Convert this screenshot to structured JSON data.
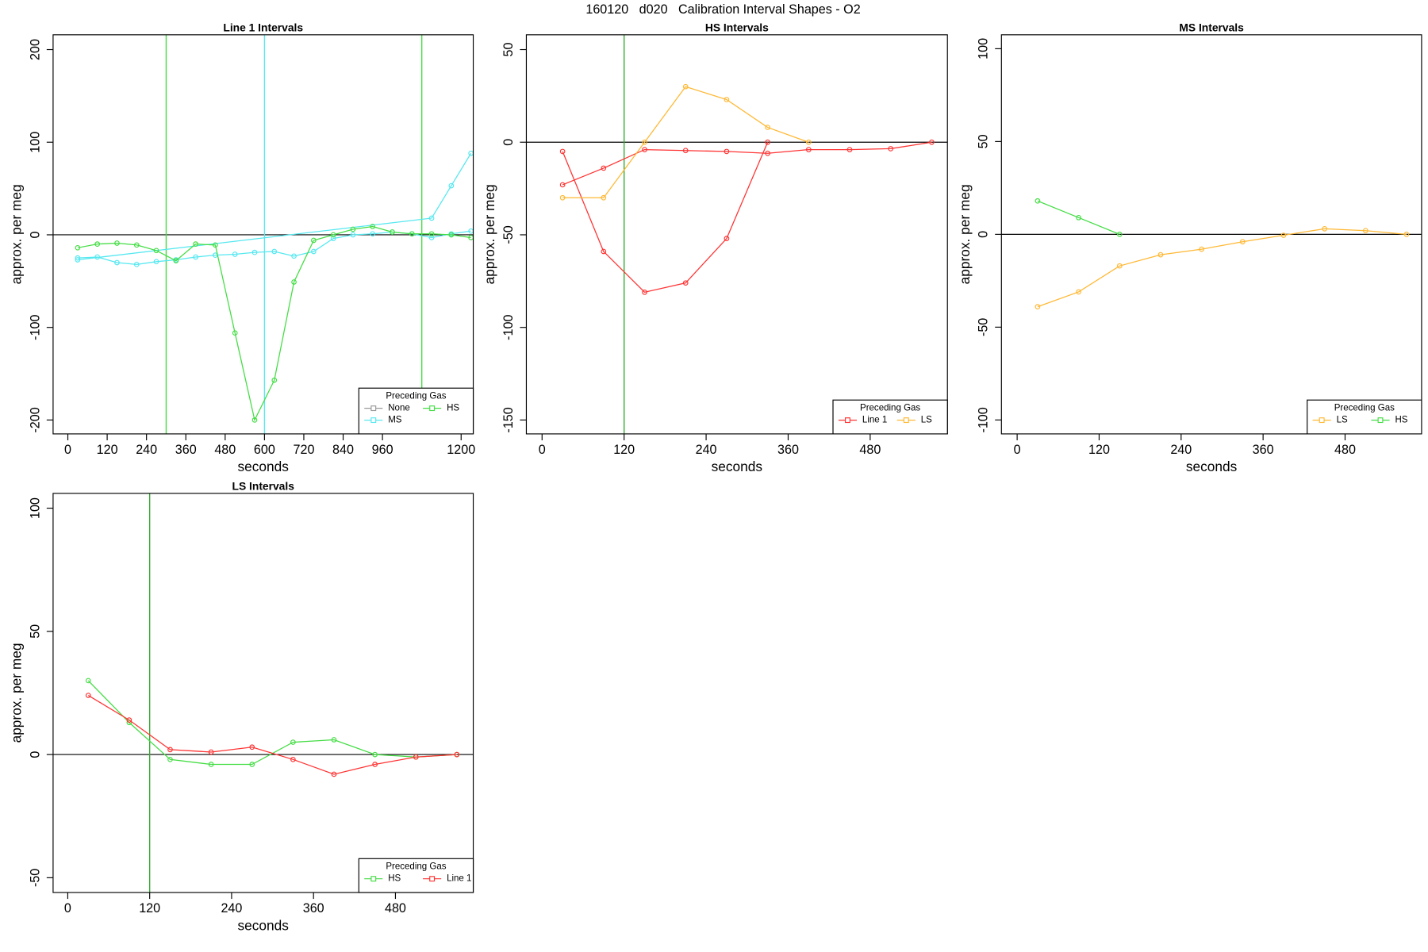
{
  "title": "160120   d020   Calibration Interval Shapes - O2",
  "chart_data": [
    {
      "type": "line",
      "title": "Line 1 Intervals",
      "x_label": "seconds",
      "y_label": "approx. per meg",
      "xlim": [
        -45,
        1237
      ],
      "ylim": [
        -215,
        216
      ],
      "xticks": [
        0,
        120,
        240,
        360,
        480,
        600,
        720,
        840,
        960,
        1200
      ],
      "yticks": [
        -200,
        -100,
        0,
        100,
        200
      ],
      "hline": 0,
      "vlines": [
        {
          "x": 300,
          "color": "#44dd44"
        },
        {
          "x": 600,
          "color": "#55e8f0"
        },
        {
          "x": 1080,
          "color": "#44dd44"
        }
      ],
      "legend": {
        "title": "Preceding Gas",
        "position": "bottomright"
      },
      "series": [
        {
          "name": "None",
          "color": "#999999",
          "x": [],
          "values": []
        },
        {
          "name": "MS",
          "color": "#55e8f0",
          "x": [
            30,
            90,
            150,
            210,
            270,
            330,
            390,
            450,
            510,
            570,
            630,
            690,
            750,
            810,
            870,
            930,
            990,
            1050,
            1110,
            1170,
            1230,
            null,
            30,
            1110,
            1170,
            1230
          ],
          "values": [
            -25,
            -24,
            -30,
            -32,
            -29,
            -27,
            -24,
            -22,
            -21,
            -19,
            -18,
            -23,
            -18,
            -4,
            0,
            1,
            3,
            1,
            -3,
            1,
            4,
            null,
            -27,
            18,
            53,
            88
          ]
        },
        {
          "name": "HS",
          "color": "#44dd44",
          "x": [
            30,
            90,
            150,
            210,
            270,
            330,
            390,
            450,
            510,
            570,
            630,
            690,
            750,
            810,
            870,
            930,
            990,
            1050,
            1110,
            1170,
            1230
          ],
          "values": [
            -14,
            -10,
            -9,
            -11,
            -17,
            -28,
            -10,
            -11,
            -106,
            -200,
            -157,
            -51,
            -6,
            0,
            6,
            9,
            3,
            1,
            1,
            0,
            -3
          ]
        }
      ]
    },
    {
      "type": "line",
      "title": "HS Intervals",
      "x_label": "seconds",
      "y_label": "approx. per meg",
      "xlim": [
        -23,
        593
      ],
      "ylim": [
        -157.5,
        58
      ],
      "xticks": [
        0,
        120,
        240,
        360,
        480
      ],
      "yticks": [
        -150,
        -100,
        -50,
        0,
        50
      ],
      "hline": 0,
      "vlines": [
        {
          "x": 120,
          "color": "#33aa33"
        }
      ],
      "legend": {
        "title": "Preceding Gas",
        "position": "bottomright"
      },
      "series": [
        {
          "name": "Line 1",
          "color": "#ff3333",
          "x": [
            30,
            90,
            150,
            210,
            270,
            330,
            null,
            30,
            90,
            150,
            210,
            270,
            330,
            390,
            450,
            510,
            570
          ],
          "values": [
            -5,
            -59,
            -81,
            -76,
            -52,
            0,
            null,
            -23,
            -14,
            -4,
            -4.5,
            -5,
            -6,
            -4,
            -4,
            -3.5,
            0
          ]
        },
        {
          "name": "LS",
          "color": "#ffb833",
          "x": [
            30,
            90,
            150,
            210,
            270,
            330,
            390
          ],
          "values": [
            -30,
            -30,
            0,
            30,
            23,
            8,
            0
          ]
        }
      ]
    },
    {
      "type": "line",
      "title": "MS Intervals",
      "x_label": "seconds",
      "y_label": "approx. per meg",
      "xlim": [
        -23,
        592
      ],
      "ylim": [
        -107.5,
        107.5
      ],
      "xticks": [
        0,
        120,
        240,
        360,
        480
      ],
      "yticks": [
        -100,
        -50,
        0,
        50,
        100
      ],
      "hline": 0,
      "vlines": [],
      "legend": {
        "title": "Preceding Gas",
        "position": "bottomright"
      },
      "series": [
        {
          "name": "LS",
          "color": "#ffb833",
          "x": [
            30,
            90,
            150,
            210,
            270,
            330,
            390,
            450,
            510,
            570
          ],
          "values": [
            -39,
            -31,
            -17,
            -11,
            -8,
            -4,
            -0.5,
            3,
            2,
            0
          ]
        },
        {
          "name": "HS",
          "color": "#44dd44",
          "x": [
            30,
            90,
            150
          ],
          "values": [
            18,
            9,
            0
          ]
        }
      ]
    },
    {
      "type": "line",
      "title": "LS Intervals",
      "x_label": "seconds",
      "y_label": "approx. per meg",
      "xlim": [
        -21.5,
        594
      ],
      "ylim": [
        -56,
        106
      ],
      "xticks": [
        0,
        120,
        240,
        360,
        480
      ],
      "yticks": [
        -50,
        0,
        50,
        100
      ],
      "hline": 0,
      "vlines": [
        {
          "x": 120,
          "color": "#33aa33"
        }
      ],
      "legend": {
        "title": "Preceding Gas",
        "position": "bottomright"
      },
      "series": [
        {
          "name": "HS",
          "color": "#44dd44",
          "x": [
            30,
            90,
            150,
            210,
            270,
            330,
            390,
            450,
            510,
            570
          ],
          "values": [
            30,
            13,
            -2,
            -4,
            -4,
            5,
            6,
            0,
            -1,
            0
          ]
        },
        {
          "name": "Line 1",
          "color": "#ff3333",
          "x": [
            30,
            90,
            150,
            210,
            270,
            330,
            390,
            450,
            510,
            570
          ],
          "values": [
            24,
            14,
            2,
            1,
            3,
            -2,
            -8,
            -4,
            -1,
            0
          ]
        }
      ]
    }
  ]
}
